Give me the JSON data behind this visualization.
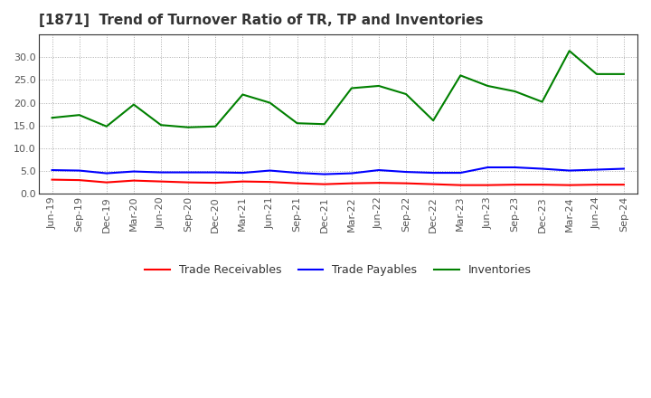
{
  "title": "[1871]  Trend of Turnover Ratio of TR, TP and Inventories",
  "x_labels": [
    "Jun-19",
    "Sep-19",
    "Dec-19",
    "Mar-20",
    "Jun-20",
    "Sep-20",
    "Dec-20",
    "Mar-21",
    "Jun-21",
    "Sep-21",
    "Dec-21",
    "Mar-22",
    "Jun-22",
    "Sep-22",
    "Dec-22",
    "Mar-23",
    "Jun-23",
    "Sep-23",
    "Dec-23",
    "Mar-24",
    "Jun-24",
    "Sep-24"
  ],
  "trade_receivables": [
    3.1,
    3.0,
    2.5,
    2.9,
    2.7,
    2.5,
    2.4,
    2.7,
    2.6,
    2.3,
    2.1,
    2.3,
    2.4,
    2.3,
    2.1,
    1.9,
    1.9,
    2.0,
    2.0,
    1.9,
    2.0,
    2.0
  ],
  "trade_payables": [
    5.2,
    5.1,
    4.5,
    4.9,
    4.7,
    4.7,
    4.7,
    4.6,
    5.1,
    4.6,
    4.3,
    4.5,
    5.2,
    4.8,
    4.6,
    4.6,
    5.8,
    5.8,
    5.5,
    5.1,
    5.3,
    5.5
  ],
  "inventories": [
    16.7,
    17.3,
    14.8,
    19.6,
    15.1,
    14.6,
    14.8,
    21.8,
    20.0,
    15.5,
    15.3,
    23.2,
    23.7,
    21.9,
    16.1,
    26.0,
    23.7,
    22.5,
    20.2,
    31.4,
    26.3,
    26.3
  ],
  "ylim": [
    0,
    35
  ],
  "yticks": [
    0.0,
    5.0,
    10.0,
    15.0,
    20.0,
    25.0,
    30.0
  ],
  "color_tr": "#ff0000",
  "color_tp": "#0000ff",
  "color_inv": "#008000",
  "legend_labels": [
    "Trade Receivables",
    "Trade Payables",
    "Inventories"
  ],
  "bg_color": "#ffffff",
  "plot_bg_color": "#ffffff",
  "title_fontsize": 11,
  "tick_fontsize": 8,
  "legend_fontsize": 9
}
